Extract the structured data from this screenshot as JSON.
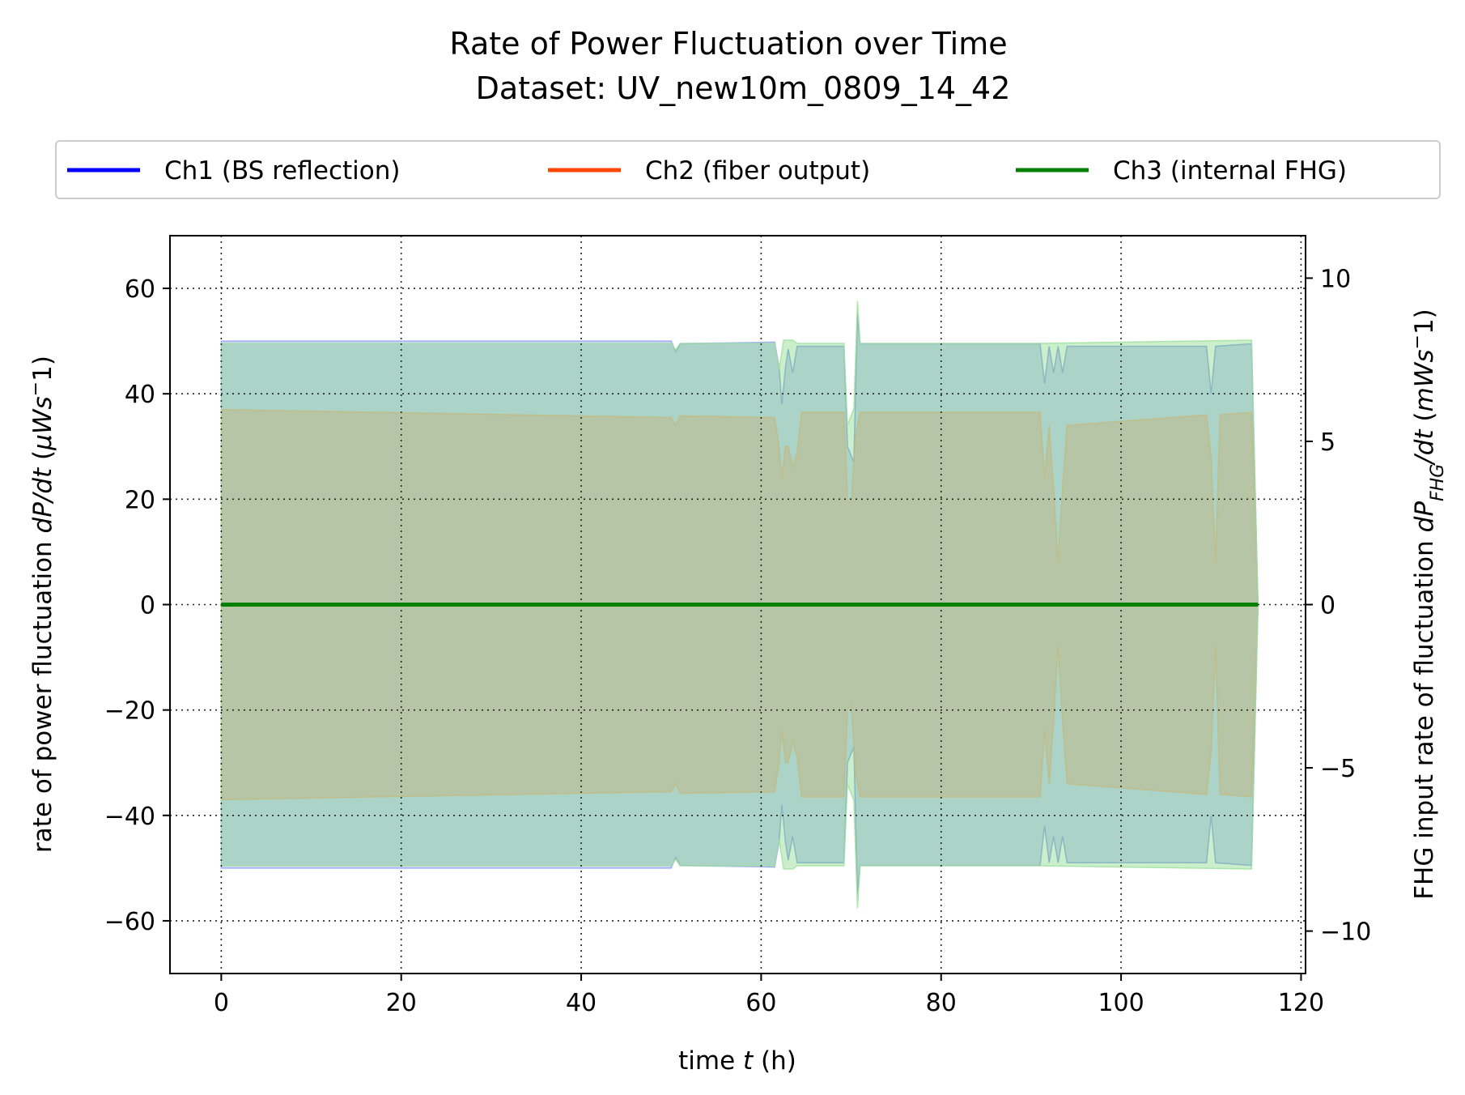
{
  "chart_data": {
    "type": "line",
    "title": "Rate of Power Fluctuation over Time",
    "subtitle": "Dataset: UV_new10m_0809_14_42",
    "xlabel": {
      "pre": "time ",
      "var": "t",
      "post": " (h)"
    },
    "ylabel_left": {
      "pre": "rate of power fluctuation ",
      "var": "dP/dt",
      "post": " (",
      "unit": "μWs",
      "sup": "−",
      "end": "1)"
    },
    "ylabel_right": {
      "pre": "FHG input rate of fluctuation ",
      "var": "dP",
      "sub": "FHG",
      "var2": "/dt",
      "post": " (",
      "unit": "mWs",
      "sup": "−",
      "end": "1)"
    },
    "xlim": [
      -5.7,
      120.5
    ],
    "ylim_left": [
      -70,
      70
    ],
    "ylim_right": [
      -11.3,
      11.3
    ],
    "xticks": [
      0,
      20,
      40,
      60,
      80,
      100,
      120
    ],
    "xtick_labels": [
      "0",
      "20",
      "40",
      "60",
      "80",
      "100",
      "120"
    ],
    "yticks_left": [
      -60,
      -40,
      -20,
      0,
      20,
      40,
      60
    ],
    "ytick_labels_left": [
      "−60",
      "−40",
      "−20",
      "0",
      "20",
      "40",
      "60"
    ],
    "yticks_right": [
      -10,
      -5,
      0,
      5,
      10
    ],
    "ytick_labels_right": [
      "−10",
      "−5",
      "0",
      "5",
      "10"
    ],
    "grid": true,
    "legend_position": "top-center",
    "series": [
      {
        "name": "Ch1 (BS reflection)",
        "color": "#0000ff",
        "axis": "left",
        "values_constant": 0,
        "band": [
          [
            0,
            50
          ],
          [
            50,
            50
          ],
          [
            50.5,
            48
          ],
          [
            51,
            49.5
          ],
          [
            61.5,
            49.8
          ],
          [
            62,
            45
          ],
          [
            62.3,
            38
          ],
          [
            62.7,
            45
          ],
          [
            63,
            48.5
          ],
          [
            63.5,
            44
          ],
          [
            64,
            49
          ],
          [
            69.2,
            49
          ],
          [
            69.6,
            30
          ],
          [
            70.3,
            27
          ],
          [
            70.7,
            55
          ],
          [
            71,
            49.5
          ],
          [
            91,
            49.5
          ],
          [
            91.5,
            42
          ],
          [
            92,
            49
          ],
          [
            92.5,
            44
          ],
          [
            93,
            49
          ],
          [
            93.5,
            44
          ],
          [
            94,
            49
          ],
          [
            109.5,
            49
          ],
          [
            110,
            40
          ],
          [
            110.5,
            49
          ],
          [
            114.5,
            49.5
          ],
          [
            115.2,
            1
          ]
        ]
      },
      {
        "name": "Ch2 (fiber output)",
        "color": "#ff4500",
        "axis": "left",
        "values_constant": 0,
        "band": [
          [
            0,
            37
          ],
          [
            50,
            35.5
          ],
          [
            50.5,
            34
          ],
          [
            51,
            35.8
          ],
          [
            61.5,
            35.5
          ],
          [
            62,
            30
          ],
          [
            62.3,
            24
          ],
          [
            62.7,
            30
          ],
          [
            63,
            30
          ],
          [
            63.5,
            26
          ],
          [
            64,
            29
          ],
          [
            64.5,
            36.5
          ],
          [
            69.2,
            36.5
          ],
          [
            69.6,
            20
          ],
          [
            70,
            19
          ],
          [
            70.5,
            32
          ],
          [
            71,
            36.5
          ],
          [
            91,
            36.5
          ],
          [
            91.5,
            24
          ],
          [
            92,
            34
          ],
          [
            92.5,
            22
          ],
          [
            93,
            8
          ],
          [
            93.5,
            22
          ],
          [
            94,
            34
          ],
          [
            109.5,
            36
          ],
          [
            110,
            28
          ],
          [
            110.5,
            8
          ],
          [
            111,
            36
          ],
          [
            114.5,
            36.5
          ],
          [
            115.2,
            1
          ]
        ]
      },
      {
        "name": "Ch3 (internal FHG)",
        "color": "#008000",
        "axis": "right",
        "values_constant": 0,
        "band": [
          [
            0,
            8
          ],
          [
            50,
            8
          ],
          [
            50.5,
            7.8
          ],
          [
            51,
            8
          ],
          [
            61.5,
            8
          ],
          [
            62,
            7.2
          ],
          [
            62.5,
            8.1
          ],
          [
            63.5,
            8.1
          ],
          [
            64,
            8
          ],
          [
            69.2,
            8
          ],
          [
            69.6,
            5.5
          ],
          [
            70.3,
            6
          ],
          [
            70.7,
            9.3
          ],
          [
            71,
            8
          ],
          [
            91,
            8
          ],
          [
            114.5,
            8.1
          ],
          [
            115.2,
            0.2
          ]
        ]
      }
    ]
  }
}
